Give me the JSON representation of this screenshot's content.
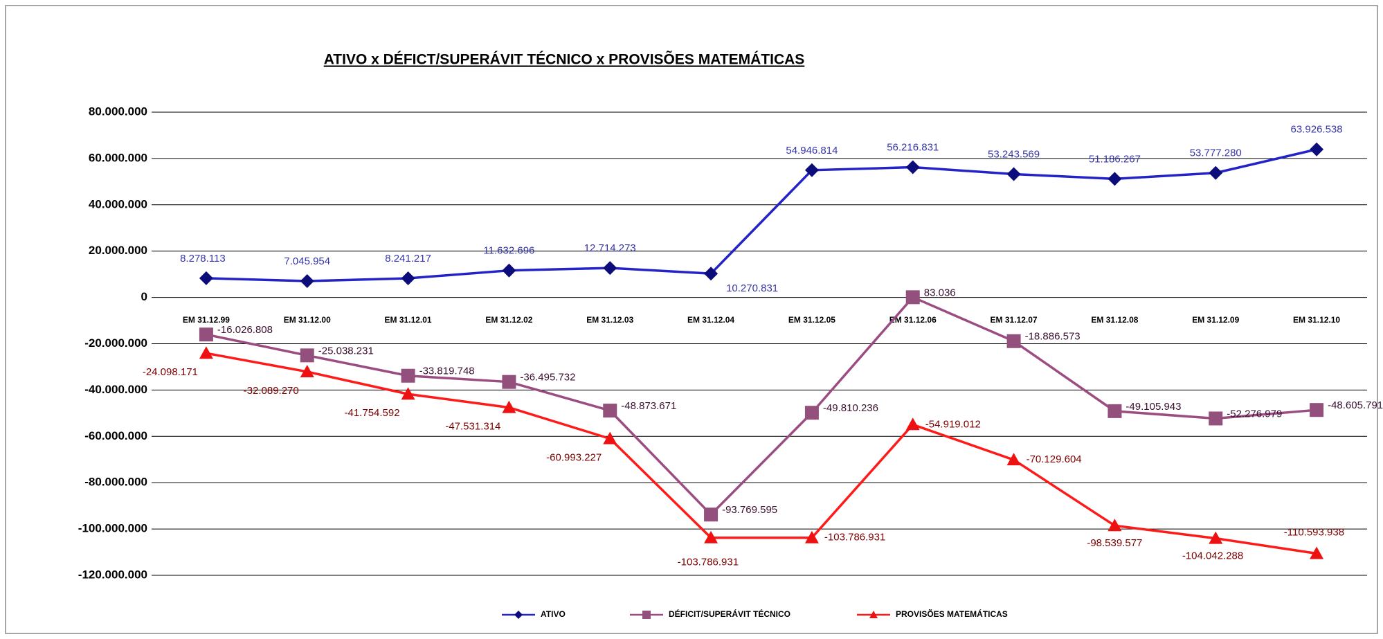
{
  "chart_data": {
    "type": "line",
    "title": "ATIVO x DÉFICT/SUPERÁVIT TÉCNICO x PROVISÕES MATEMÁTICAS",
    "categories": [
      "EM 31.12.99",
      "EM 31.12.00",
      "EM 31.12.01",
      "EM 31.12.02",
      "EM 31.12.03",
      "EM 31.12.04",
      "EM 31.12.05",
      "EM 31.12.06",
      "EM 31.12.07",
      "EM 31.12.08",
      "EM 31.12.09",
      "EM 31.12.10"
    ],
    "series": [
      {
        "name": "ATIVO",
        "color": "#2323c8",
        "marker": "diamond",
        "marker_color": "#0c0c7a",
        "label_color": "#3535a8",
        "values": [
          8278113,
          7045954,
          8241217,
          11632696,
          12714273,
          10270831,
          54946814,
          56216831,
          53243569,
          51186267,
          53777280,
          63926538
        ],
        "value_labels": [
          "8.278.113",
          "7.045.954",
          "8.241.217",
          "11.632.696",
          "12.714.273",
          "10.270.831",
          "54.946.814",
          "56.216.831",
          "53.243.569",
          "51.186.267",
          "53.777.280",
          "63.926.538"
        ]
      },
      {
        "name": "DÉFICIT/SUPERÁVIT TÉCNICO",
        "color": "#9b4d82",
        "marker": "square",
        "marker_color": "#94507c",
        "label_color": "#3a1030",
        "values": [
          -16026808,
          -25038231,
          -33819748,
          -36495732,
          -48873671,
          -93769595,
          -49810236,
          83036,
          -18886573,
          -49105943,
          -52276979,
          -48605791
        ],
        "value_labels": [
          "-16.026.808",
          "-25.038.231",
          "-33.819.748",
          "-36.495.732",
          "-48.873.671",
          "-93.769.595",
          "-49.810.236",
          "83.036",
          "-18.886.573",
          "-49.105.943",
          "-52.276.979",
          "-48.605.791"
        ]
      },
      {
        "name": "PROVISÕES MATEMÁTICAS",
        "color": "#ff1a1a",
        "marker": "triangle",
        "marker_color": "#ee1111",
        "label_color": "#7a0000",
        "values": [
          -24098171,
          -32089270,
          -41754592,
          -47531314,
          -60993227,
          -103786931,
          -103786931,
          -54919012,
          -70129604,
          -98539577,
          -104042288,
          -110593938
        ],
        "value_labels": [
          "-24.098.171",
          "-32.089.270",
          "-41.754.592",
          "-47.531.314",
          "-60.993.227",
          "-103.786.931",
          "-103.786.931",
          "-54.919.012",
          "-70.129.604",
          "-98.539.577",
          "-104.042.288",
          "-110.593.938"
        ]
      }
    ],
    "ylim": [
      -120000000,
      80000000
    ],
    "yticks": [
      {
        "value": -120000000,
        "label": "-120.000.000"
      },
      {
        "value": -100000000,
        "label": "-100.000.000"
      },
      {
        "value": -80000000,
        "label": "-80.000.000"
      },
      {
        "value": -60000000,
        "label": "-60.000.000"
      },
      {
        "value": -40000000,
        "label": "-40.000.000"
      },
      {
        "value": -20000000,
        "label": "-20.000.000"
      },
      0,
      {
        "value": 20000000,
        "label": "20.000.000"
      },
      {
        "value": 40000000,
        "label": "40.000.000"
      },
      {
        "value": 60000000,
        "label": "60.000.000"
      },
      {
        "value": 80000000,
        "label": "80.000.000"
      }
    ],
    "grid": true,
    "legend": "bottom"
  }
}
